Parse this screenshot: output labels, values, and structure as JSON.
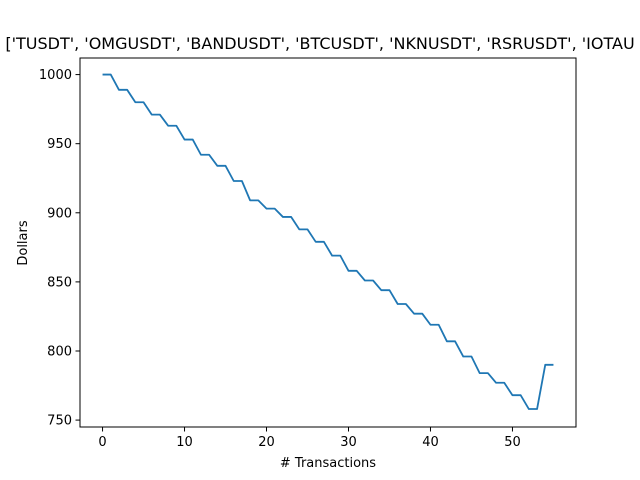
{
  "chart_data": {
    "type": "line",
    "title": "['TUSDT', 'OMGUSDT', 'BANDUSDT', 'BTCUSDT', 'NKNUSDT', 'RSRUSDT', 'IOTAU",
    "xlabel": "# Transactions",
    "ylabel": "Dollars",
    "xlim": [
      -2.75,
      57.75
    ],
    "ylim": [
      745,
      1012
    ],
    "xticks": [
      0,
      10,
      20,
      30,
      40,
      50
    ],
    "yticks": [
      750,
      800,
      850,
      900,
      950,
      1000
    ],
    "grid": false,
    "legend": "none",
    "line_color": "#1f77b4",
    "series": [
      {
        "x": [
          0,
          1,
          2,
          3,
          4,
          5,
          6,
          7,
          8,
          9,
          10,
          11,
          12,
          13,
          14,
          15,
          16,
          17,
          18,
          19,
          20,
          21,
          22,
          23,
          24,
          25,
          26,
          27,
          28,
          29,
          30,
          31,
          32,
          33,
          34,
          35,
          36,
          37,
          38,
          39,
          40,
          41,
          42,
          43,
          44,
          45,
          46,
          47,
          48,
          49,
          50,
          51,
          52,
          53,
          54,
          55
        ],
        "values": [
          1000,
          1000,
          989,
          989,
          980,
          980,
          971,
          971,
          963,
          963,
          953,
          953,
          942,
          942,
          934,
          934,
          923,
          923,
          909,
          909,
          903,
          903,
          897,
          897,
          888,
          888,
          879,
          879,
          869,
          869,
          858,
          858,
          851,
          851,
          844,
          844,
          834,
          834,
          827,
          827,
          819,
          819,
          807,
          807,
          796,
          796,
          784,
          784,
          777,
          777,
          768,
          768,
          758,
          758,
          790,
          790
        ]
      }
    ]
  }
}
